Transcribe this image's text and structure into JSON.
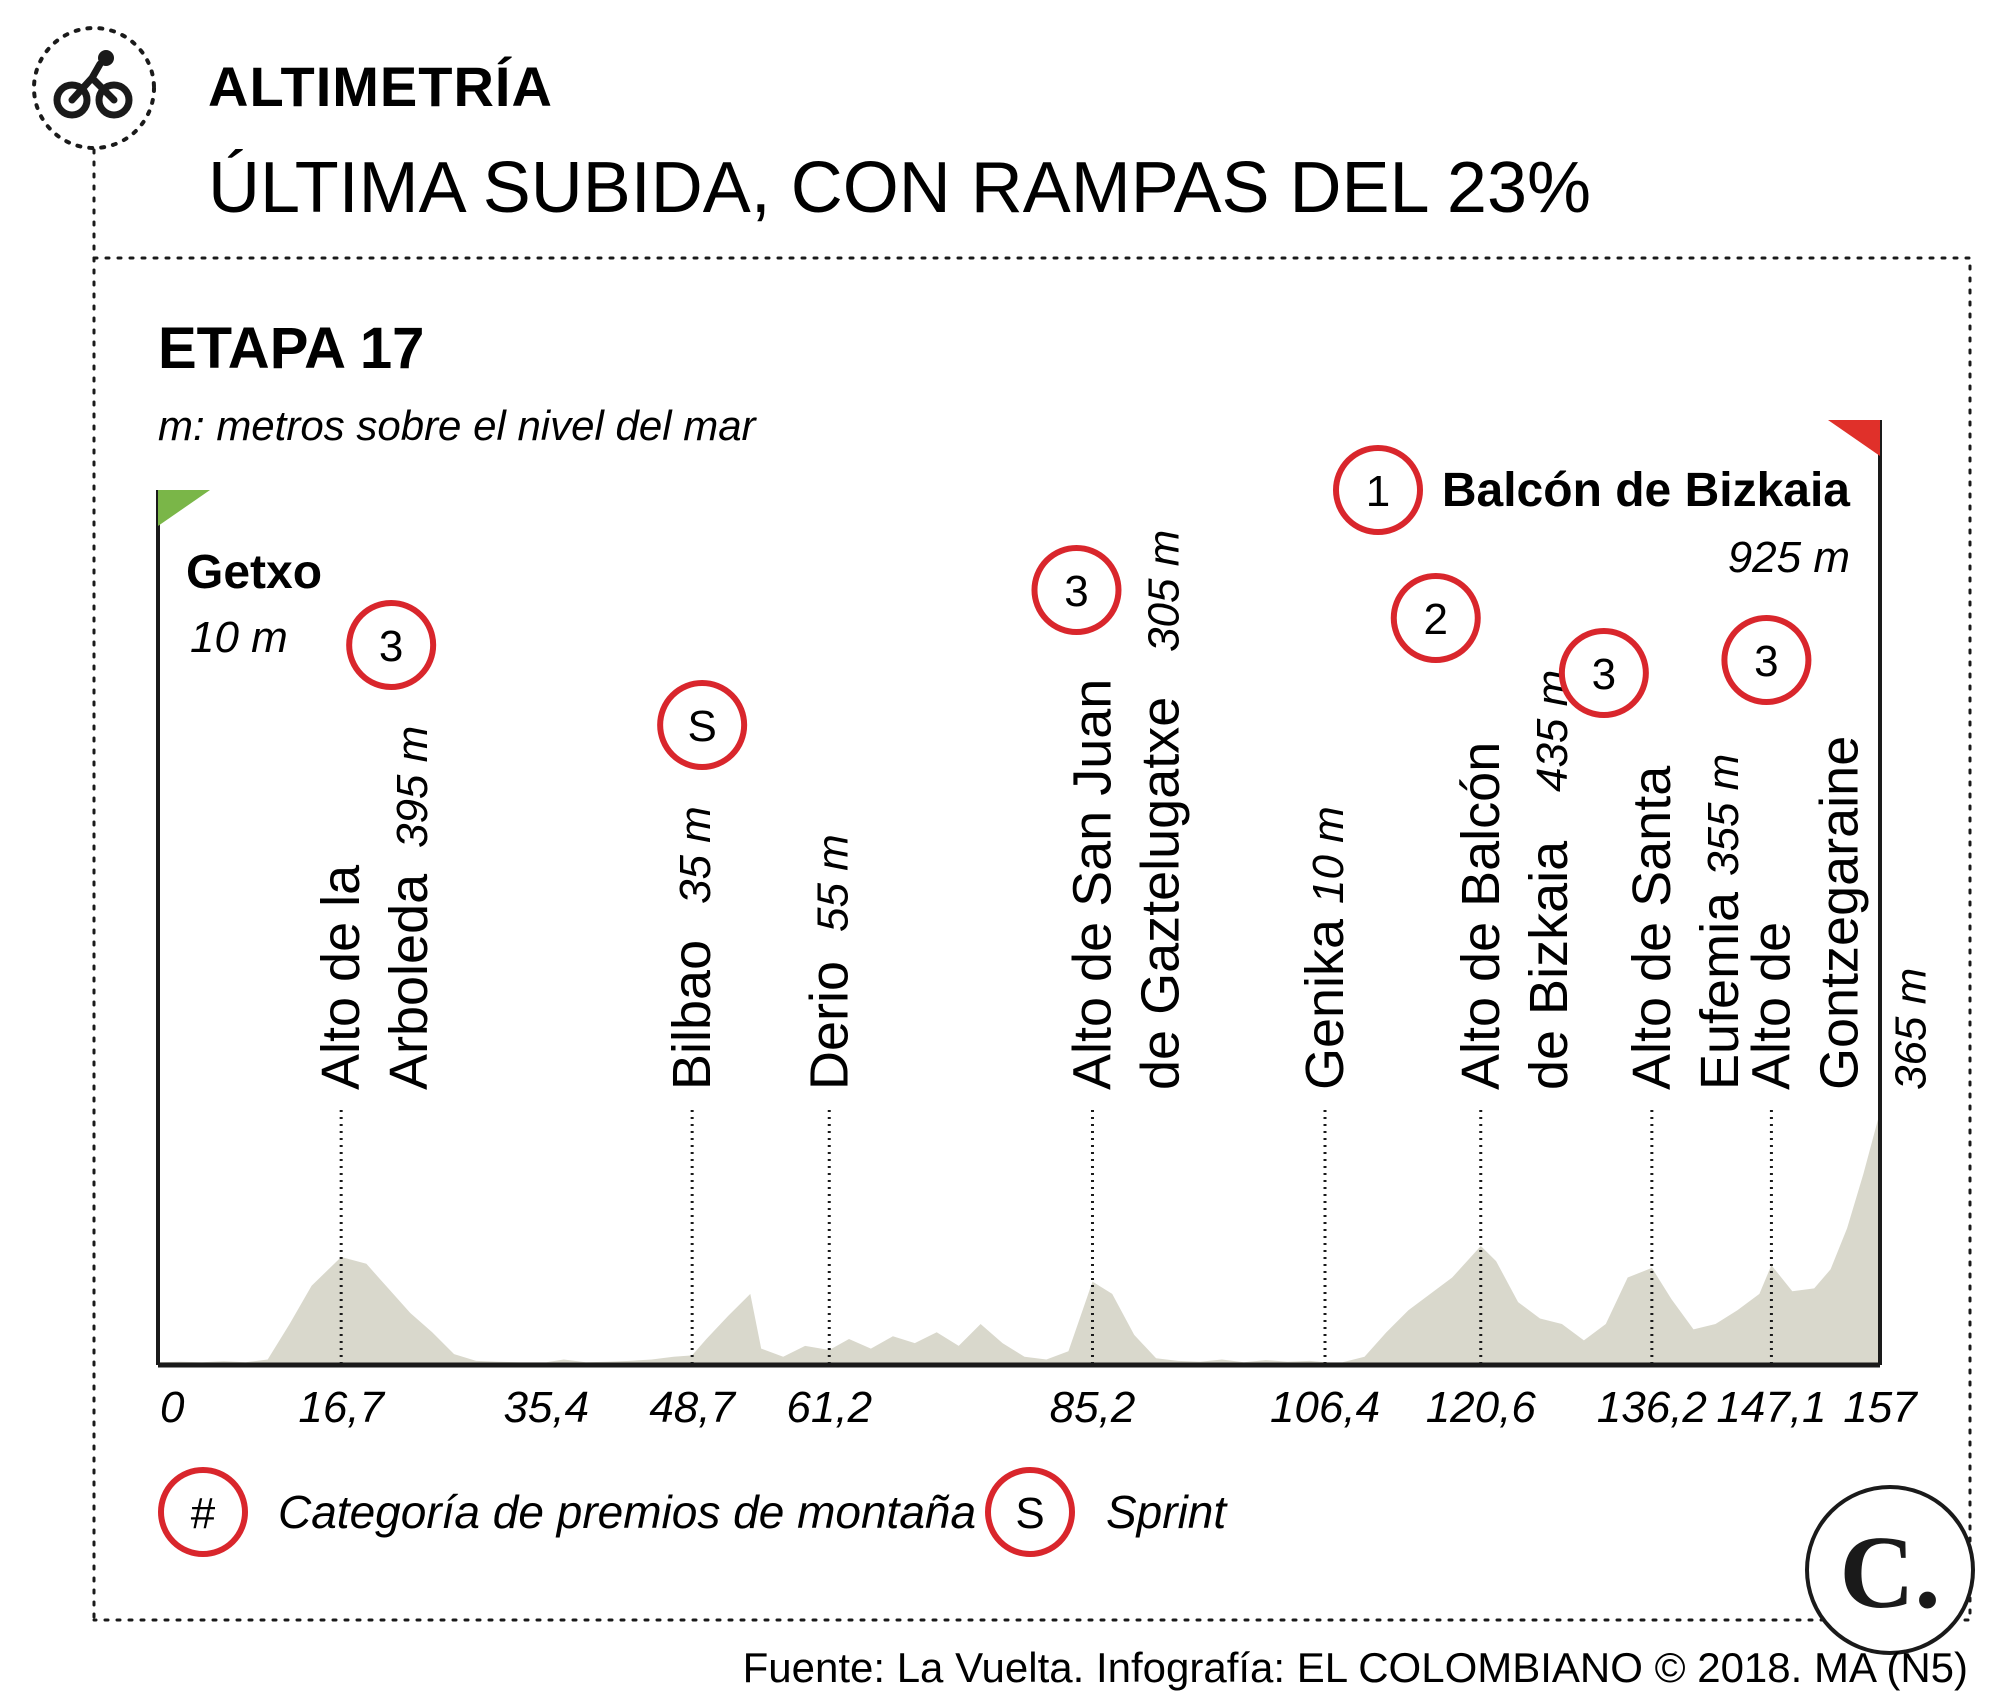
{
  "header": {
    "kicker": "ALTIMETRÍA",
    "headline": "ÚLTIMA SUBIDA, CON RAMPAS DEL 23%",
    "icon": "cyclist-icon"
  },
  "chart_data": {
    "type": "area",
    "title": "ETAPA 17",
    "subtitle": "m: metros sobre el nivel del mar",
    "xlabel": "",
    "ylabel": "",
    "xlim": [
      0,
      157
    ],
    "ylim": [
      0,
      925
    ],
    "x_ticks": [
      "0",
      "16,7",
      "35,4",
      "48,7",
      "61,2",
      "85,2",
      "106,4",
      "120,6",
      "136,2",
      "147,1",
      "157"
    ],
    "x_tick_values": [
      0,
      16.7,
      35.4,
      48.7,
      61.2,
      85.2,
      106.4,
      120.6,
      136.2,
      147.1,
      157
    ],
    "profile": {
      "x": [
        0,
        2,
        4,
        6,
        8,
        10,
        12,
        14,
        16.7,
        19,
        21,
        23,
        25,
        27,
        29,
        31,
        33,
        35.4,
        37,
        39,
        41,
        43,
        45,
        47,
        48.7,
        50,
        52,
        54,
        55,
        57,
        59,
        61.2,
        63,
        65,
        67,
        69,
        71,
        73,
        75,
        77,
        79,
        81,
        83,
        85.2,
        87,
        89,
        91,
        93,
        95,
        97,
        99,
        101,
        103,
        105,
        106.4,
        108,
        110,
        112,
        114,
        116,
        118,
        120.6,
        122,
        124,
        126,
        128,
        130,
        132,
        134,
        136.2,
        138,
        140,
        142,
        144,
        146,
        147.1,
        149,
        151,
        152.5,
        154,
        155.5,
        157
      ],
      "y": [
        10,
        12,
        10,
        14,
        10,
        20,
        150,
        290,
        395,
        370,
        280,
        190,
        120,
        40,
        15,
        12,
        10,
        10,
        20,
        10,
        12,
        15,
        20,
        30,
        35,
        95,
        180,
        260,
        60,
        30,
        70,
        55,
        95,
        60,
        105,
        80,
        120,
        70,
        150,
        80,
        30,
        20,
        50,
        305,
        260,
        110,
        25,
        15,
        12,
        20,
        10,
        18,
        12,
        15,
        10,
        10,
        30,
        120,
        200,
        260,
        320,
        435,
        380,
        230,
        170,
        150,
        90,
        150,
        320,
        355,
        240,
        130,
        150,
        200,
        260,
        365,
        270,
        280,
        350,
        500,
        700,
        925
      ]
    },
    "locations": [
      {
        "km": 0,
        "name": "Getxo",
        "altitude": "10 m",
        "role": "start"
      },
      {
        "km": 16.7,
        "name": [
          "Alto de la",
          "Arboleda"
        ],
        "altitude": "395 m",
        "badge": "3"
      },
      {
        "km": 48.7,
        "name": [
          "Bilbao"
        ],
        "altitude": "35 m",
        "badge": "S"
      },
      {
        "km": 61.2,
        "name": [
          "Derio"
        ],
        "altitude": "55 m"
      },
      {
        "km": 85.2,
        "name": [
          "Alto de San Juan",
          "de Gaztelugatxe"
        ],
        "altitude": "305 m",
        "badge": "3"
      },
      {
        "km": 106.4,
        "name": [
          "Genika"
        ],
        "altitude": "10 m"
      },
      {
        "km": 120.6,
        "name": [
          "Alto de Balcón",
          "de Bizkaia"
        ],
        "altitude": "435 m",
        "badge": "2"
      },
      {
        "km": 136.2,
        "name": [
          "Alto de Santa",
          "Eufemia"
        ],
        "altitude": "355 m",
        "badge": "3"
      },
      {
        "km": 147.1,
        "name": [
          "Alto de",
          "Gontzegaraine"
        ],
        "altitude": "365 m",
        "badge": "3"
      },
      {
        "km": 157,
        "name": "Balcón de Bizkaia",
        "altitude": "925 m",
        "badge": "1",
        "role": "finish"
      }
    ],
    "colors": {
      "terrain": "#d9d8cc",
      "badge_ring": "#d9262c",
      "start_flag": "#7ab648",
      "finish_flag": "#e0302a",
      "text": "#1a1a1a"
    }
  },
  "legend": {
    "mountain_symbol": "#",
    "mountain_label": "Categoría de premios de montaña",
    "sprint_symbol": "S",
    "sprint_label": "Sprint"
  },
  "logo": {
    "text": "C."
  },
  "footer": {
    "source": "Fuente: La Vuelta. Infografía: EL COLOMBIANO © 2018. MA (N5)"
  }
}
